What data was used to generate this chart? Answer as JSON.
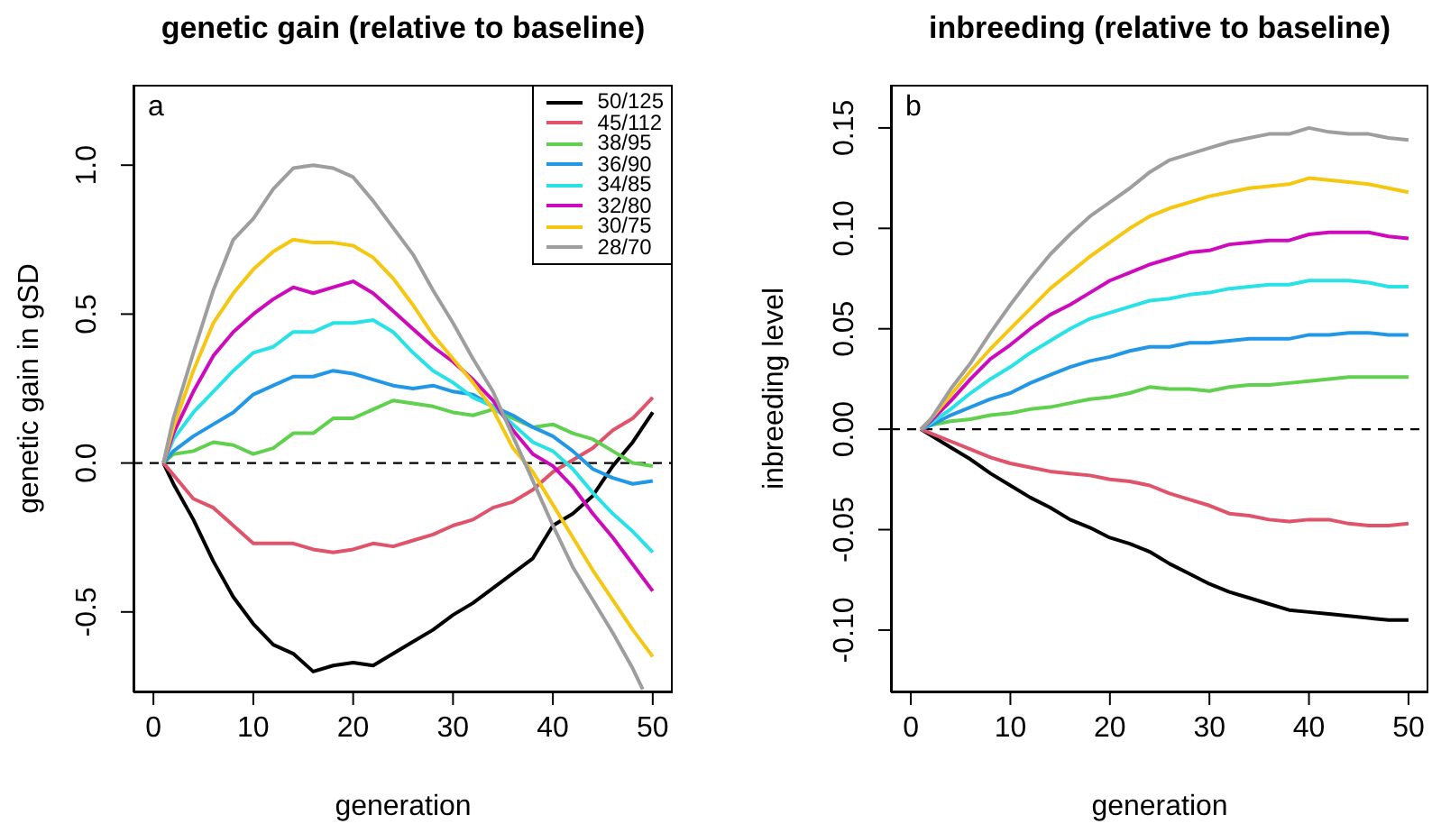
{
  "chart_data": [
    {
      "type": "line",
      "title": "genetic gain (relative to baseline)",
      "xlabel": "generation",
      "ylabel": "genetic gain in gSD",
      "annotations": [
        "a"
      ],
      "legend": "top right",
      "x": [
        1,
        2,
        4,
        6,
        8,
        10,
        12,
        14,
        16,
        18,
        20,
        22,
        24,
        26,
        28,
        30,
        32,
        34,
        36,
        38,
        40,
        42,
        44,
        46,
        48,
        50
      ],
      "xlim": [
        -2,
        52
      ],
      "xticks": [
        0,
        10,
        20,
        30,
        40,
        50
      ],
      "ylim": [
        -0.77,
        1.27
      ],
      "yticks": [
        {
          "value": -0.5,
          "label": "-0.5"
        },
        {
          "value": 0,
          "label": "0.0"
        },
        {
          "value": 0.5,
          "label": "0.5"
        },
        {
          "value": 1,
          "label": "1.0"
        }
      ],
      "ref_lines": [
        {
          "axis": "y",
          "value": 0,
          "color": "#000000",
          "line_style": "dashed"
        }
      ],
      "series": [
        {
          "name": "50/125",
          "color": "#000000",
          "values": [
            0,
            -0.07,
            -0.19,
            -0.33,
            -0.45,
            -0.54,
            -0.61,
            -0.64,
            -0.7,
            -0.68,
            -0.67,
            -0.68,
            -0.64,
            -0.6,
            -0.56,
            -0.51,
            -0.47,
            -0.42,
            -0.37,
            -0.32,
            -0.21,
            -0.17,
            -0.11,
            -0.01,
            0.07,
            0.17
          ]
        },
        {
          "name": "45/112",
          "color": "#df536b",
          "values": [
            0,
            -0.04,
            -0.12,
            -0.15,
            -0.21,
            -0.27,
            -0.27,
            -0.27,
            -0.29,
            -0.3,
            -0.29,
            -0.27,
            -0.28,
            -0.26,
            -0.24,
            -0.21,
            -0.19,
            -0.15,
            -0.13,
            -0.09,
            -0.03,
            0.01,
            0.05,
            0.11,
            0.15,
            0.22
          ]
        },
        {
          "name": "38/95",
          "color": "#61d04f",
          "values": [
            0,
            0.03,
            0.04,
            0.07,
            0.06,
            0.03,
            0.05,
            0.1,
            0.1,
            0.15,
            0.15,
            0.18,
            0.21,
            0.2,
            0.19,
            0.17,
            0.16,
            0.18,
            0.15,
            0.12,
            0.13,
            0.1,
            0.08,
            0.04,
            0.0,
            -0.01
          ]
        },
        {
          "name": "36/90",
          "color": "#2297e6",
          "values": [
            0,
            0.04,
            0.09,
            0.13,
            0.17,
            0.23,
            0.26,
            0.29,
            0.29,
            0.31,
            0.3,
            0.28,
            0.26,
            0.25,
            0.26,
            0.24,
            0.23,
            0.19,
            0.16,
            0.12,
            0.09,
            0.04,
            -0.02,
            -0.05,
            -0.07,
            -0.06
          ]
        },
        {
          "name": "34/85",
          "color": "#28e2e5",
          "values": [
            0,
            0.08,
            0.17,
            0.24,
            0.31,
            0.37,
            0.39,
            0.44,
            0.44,
            0.47,
            0.47,
            0.48,
            0.44,
            0.37,
            0.31,
            0.27,
            0.22,
            0.19,
            0.13,
            0.07,
            0.04,
            -0.02,
            -0.1,
            -0.17,
            -0.23,
            -0.3
          ]
        },
        {
          "name": "32/80",
          "color": "#cd0bbc",
          "values": [
            0,
            0.1,
            0.24,
            0.36,
            0.44,
            0.5,
            0.55,
            0.59,
            0.57,
            0.59,
            0.61,
            0.57,
            0.51,
            0.45,
            0.39,
            0.34,
            0.28,
            0.21,
            0.11,
            0.03,
            -0.01,
            -0.08,
            -0.17,
            -0.25,
            -0.34,
            -0.43
          ]
        },
        {
          "name": "30/75",
          "color": "#f5c710",
          "values": [
            0,
            0.12,
            0.31,
            0.47,
            0.57,
            0.65,
            0.71,
            0.75,
            0.74,
            0.74,
            0.73,
            0.69,
            0.62,
            0.53,
            0.43,
            0.35,
            0.27,
            0.18,
            0.05,
            -0.03,
            -0.14,
            -0.25,
            -0.36,
            -0.46,
            -0.56,
            -0.65
          ]
        },
        {
          "name": "28/70",
          "color": "#9e9e9e",
          "x": [
            1,
            2,
            4,
            6,
            8,
            10,
            12,
            14,
            16,
            18,
            20,
            22,
            24,
            26,
            28,
            30,
            32,
            34,
            36,
            38,
            40,
            42,
            44,
            46,
            48,
            49
          ],
          "values": [
            0,
            0.15,
            0.37,
            0.58,
            0.75,
            0.82,
            0.92,
            0.99,
            1.0,
            0.99,
            0.96,
            0.88,
            0.79,
            0.7,
            0.58,
            0.47,
            0.35,
            0.24,
            0.09,
            -0.06,
            -0.21,
            -0.35,
            -0.46,
            -0.57,
            -0.69,
            -0.76
          ]
        }
      ]
    },
    {
      "type": "line",
      "title": "inbreeding (relative to baseline)",
      "xlabel": "generation",
      "ylabel": "inbreeding level",
      "annotations": [
        "b"
      ],
      "x": [
        1,
        2,
        4,
        6,
        8,
        10,
        12,
        14,
        16,
        18,
        20,
        22,
        24,
        26,
        28,
        30,
        32,
        34,
        36,
        38,
        40,
        42,
        44,
        46,
        48,
        50
      ],
      "xlim": [
        -2,
        52
      ],
      "xticks": [
        0,
        10,
        20,
        30,
        40,
        50
      ],
      "ylim": [
        -0.131,
        0.1715
      ],
      "yticks": [
        {
          "value": -0.1,
          "label": "-0.10"
        },
        {
          "value": -0.05,
          "label": "-0.05"
        },
        {
          "value": 0,
          "label": "0.00"
        },
        {
          "value": 0.05,
          "label": "0.05"
        },
        {
          "value": 0.1,
          "label": "0.10"
        },
        {
          "value": 0.15,
          "label": "0.15"
        }
      ],
      "ref_lines": [
        {
          "axis": "y",
          "value": 0,
          "color": "#000000",
          "line_style": "dashed"
        }
      ],
      "series": [
        {
          "color": "#000000",
          "values": [
            0,
            -0.003,
            -0.009,
            -0.015,
            -0.022,
            -0.028,
            -0.034,
            -0.039,
            -0.045,
            -0.049,
            -0.054,
            -0.057,
            -0.061,
            -0.067,
            -0.072,
            -0.077,
            -0.081,
            -0.084,
            -0.087,
            -0.09,
            -0.091,
            -0.092,
            -0.093,
            -0.094,
            -0.095,
            -0.095
          ]
        },
        {
          "color": "#df536b",
          "values": [
            0,
            -0.002,
            -0.006,
            -0.01,
            -0.014,
            -0.017,
            -0.019,
            -0.021,
            -0.022,
            -0.023,
            -0.025,
            -0.026,
            -0.028,
            -0.032,
            -0.035,
            -0.038,
            -0.042,
            -0.043,
            -0.045,
            -0.046,
            -0.045,
            -0.045,
            -0.047,
            -0.048,
            -0.048,
            -0.047
          ]
        },
        {
          "color": "#61d04f",
          "values": [
            0,
            0.002,
            0.004,
            0.005,
            0.007,
            0.008,
            0.01,
            0.011,
            0.013,
            0.015,
            0.016,
            0.018,
            0.021,
            0.02,
            0.02,
            0.019,
            0.021,
            0.022,
            0.022,
            0.023,
            0.024,
            0.025,
            0.026,
            0.026,
            0.026,
            0.026
          ]
        },
        {
          "color": "#2297e6",
          "values": [
            0,
            0.002,
            0.007,
            0.011,
            0.015,
            0.018,
            0.023,
            0.027,
            0.031,
            0.034,
            0.036,
            0.039,
            0.041,
            0.041,
            0.043,
            0.043,
            0.044,
            0.045,
            0.045,
            0.045,
            0.047,
            0.047,
            0.048,
            0.048,
            0.047,
            0.047
          ]
        },
        {
          "color": "#28e2e5",
          "values": [
            0,
            0.003,
            0.01,
            0.018,
            0.025,
            0.031,
            0.038,
            0.044,
            0.05,
            0.055,
            0.058,
            0.061,
            0.064,
            0.065,
            0.067,
            0.068,
            0.07,
            0.071,
            0.072,
            0.072,
            0.074,
            0.074,
            0.074,
            0.073,
            0.071,
            0.071
          ]
        },
        {
          "color": "#cd0bbc",
          "values": [
            0,
            0.004,
            0.014,
            0.025,
            0.035,
            0.042,
            0.05,
            0.057,
            0.062,
            0.068,
            0.074,
            0.078,
            0.082,
            0.085,
            0.088,
            0.089,
            0.092,
            0.093,
            0.094,
            0.094,
            0.097,
            0.098,
            0.098,
            0.098,
            0.096,
            0.095
          ]
        },
        {
          "color": "#f5c710",
          "values": [
            0,
            0.005,
            0.017,
            0.029,
            0.04,
            0.05,
            0.06,
            0.07,
            0.078,
            0.086,
            0.093,
            0.1,
            0.106,
            0.11,
            0.113,
            0.116,
            0.118,
            0.12,
            0.121,
            0.122,
            0.125,
            0.124,
            0.123,
            0.122,
            0.12,
            0.118
          ]
        },
        {
          "color": "#9e9e9e",
          "values": [
            0,
            0.005,
            0.02,
            0.033,
            0.048,
            0.062,
            0.075,
            0.087,
            0.097,
            0.106,
            0.113,
            0.12,
            0.128,
            0.134,
            0.137,
            0.14,
            0.143,
            0.145,
            0.147,
            0.147,
            0.15,
            0.148,
            0.147,
            0.147,
            0.145,
            0.144
          ]
        }
      ]
    }
  ]
}
